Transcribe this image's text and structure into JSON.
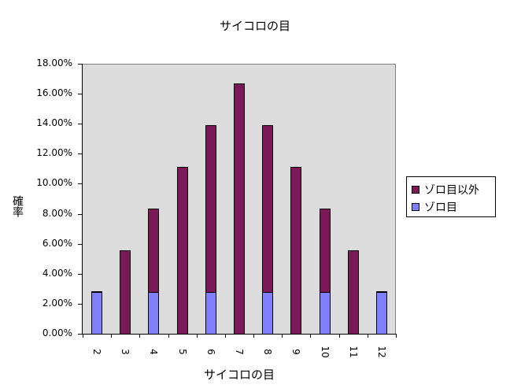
{
  "chart_data": {
    "type": "bar",
    "stacked": true,
    "title": "サイコロの目",
    "xlabel": "サイコロの目",
    "ylabel": "確率",
    "categories": [
      "2",
      "3",
      "4",
      "5",
      "6",
      "7",
      "8",
      "9",
      "10",
      "11",
      "12"
    ],
    "series": [
      {
        "name": "ゾロ目",
        "color": "#8080ff",
        "values": [
          2.78,
          0,
          2.78,
          0,
          2.78,
          0,
          2.78,
          0,
          2.78,
          0,
          2.78
        ]
      },
      {
        "name": "ゾロ目以外",
        "color": "#7a1858",
        "values": [
          0,
          5.56,
          5.56,
          11.11,
          11.11,
          16.67,
          11.11,
          11.11,
          5.56,
          5.56,
          0
        ]
      }
    ],
    "totals": [
      2.78,
      5.56,
      8.33,
      11.11,
      13.89,
      16.67,
      13.89,
      11.11,
      8.33,
      5.56,
      2.78
    ],
    "ylim": [
      0,
      18
    ],
    "yticks": [
      "0.00%",
      "2.00%",
      "4.00%",
      "6.00%",
      "8.00%",
      "10.00%",
      "12.00%",
      "14.00%",
      "16.00%",
      "18.00%"
    ],
    "grid": false,
    "legend_position": "right",
    "plot_background": "#dcdcdc"
  },
  "legend": {
    "items": [
      {
        "label": "ゾロ目以外",
        "color": "#7a1858"
      },
      {
        "label": "ゾロ目",
        "color": "#8080ff"
      }
    ]
  }
}
